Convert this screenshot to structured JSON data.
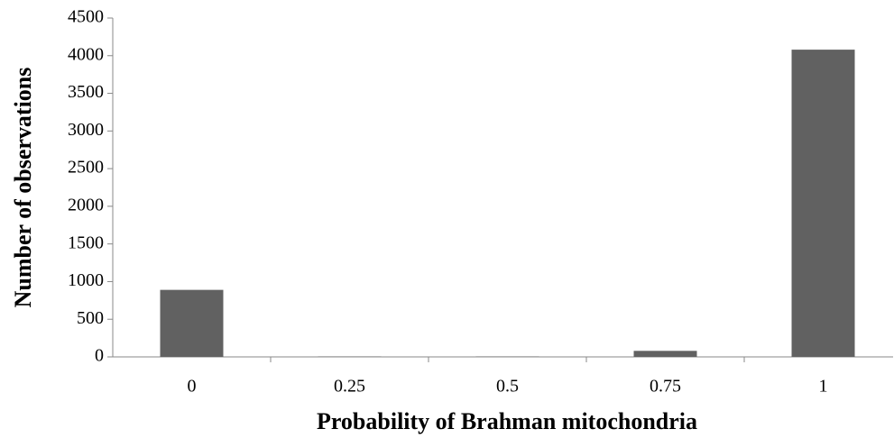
{
  "chart_data": {
    "type": "bar",
    "categories": [
      "0",
      "0.25",
      "0.5",
      "0.75",
      "1"
    ],
    "values": [
      890,
      5,
      5,
      80,
      4080
    ],
    "color": "#616161",
    "xlabel": "Probability of Brahman mitochondria",
    "ylabel": "Number of observations",
    "ylim": [
      0,
      4500
    ],
    "yticks": [
      0,
      500,
      1000,
      1500,
      2000,
      2500,
      3000,
      3500,
      4000,
      4500
    ],
    "grid": false
  }
}
